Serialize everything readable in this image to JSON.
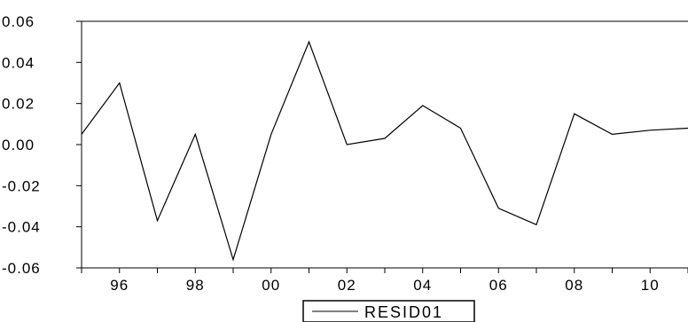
{
  "chart_data": {
    "type": "line",
    "x": [
      1995,
      1996,
      1997,
      1998,
      1999,
      2000,
      2001,
      2002,
      2003,
      2004,
      2005,
      2006,
      2007,
      2008,
      2009,
      2010,
      2011
    ],
    "series": [
      {
        "name": "RESID01",
        "values": [
          0.005,
          0.03,
          -0.037,
          0.005,
          -0.056,
          0.005,
          0.05,
          0.0,
          0.003,
          0.019,
          0.008,
          -0.031,
          -0.039,
          0.015,
          0.005,
          0.007,
          0.008
        ]
      }
    ],
    "xlim": [
      1995,
      2011
    ],
    "ylim": [
      -0.06,
      0.06
    ],
    "y_ticks": [
      {
        "value": 0.06,
        "label": "0.06"
      },
      {
        "value": 0.04,
        "label": "0.04"
      },
      {
        "value": 0.02,
        "label": "0.02"
      },
      {
        "value": 0.0,
        "label": "0.00"
      },
      {
        "value": -0.02,
        "label": "-0.02"
      },
      {
        "value": -0.04,
        "label": "-0.04"
      },
      {
        "value": -0.06,
        "label": "-0.06"
      }
    ],
    "x_ticks": [
      {
        "value": 1996,
        "label": "96"
      },
      {
        "value": 1998,
        "label": "98"
      },
      {
        "value": 2000,
        "label": "00"
      },
      {
        "value": 2002,
        "label": "02"
      },
      {
        "value": 2004,
        "label": "04"
      },
      {
        "value": 2006,
        "label": "06"
      },
      {
        "value": 2008,
        "label": "08"
      },
      {
        "value": 2010,
        "label": "10"
      }
    ],
    "grid": false,
    "legend": {
      "position": "bottom-center",
      "label": "RESID01"
    },
    "line_color": "#000000"
  }
}
